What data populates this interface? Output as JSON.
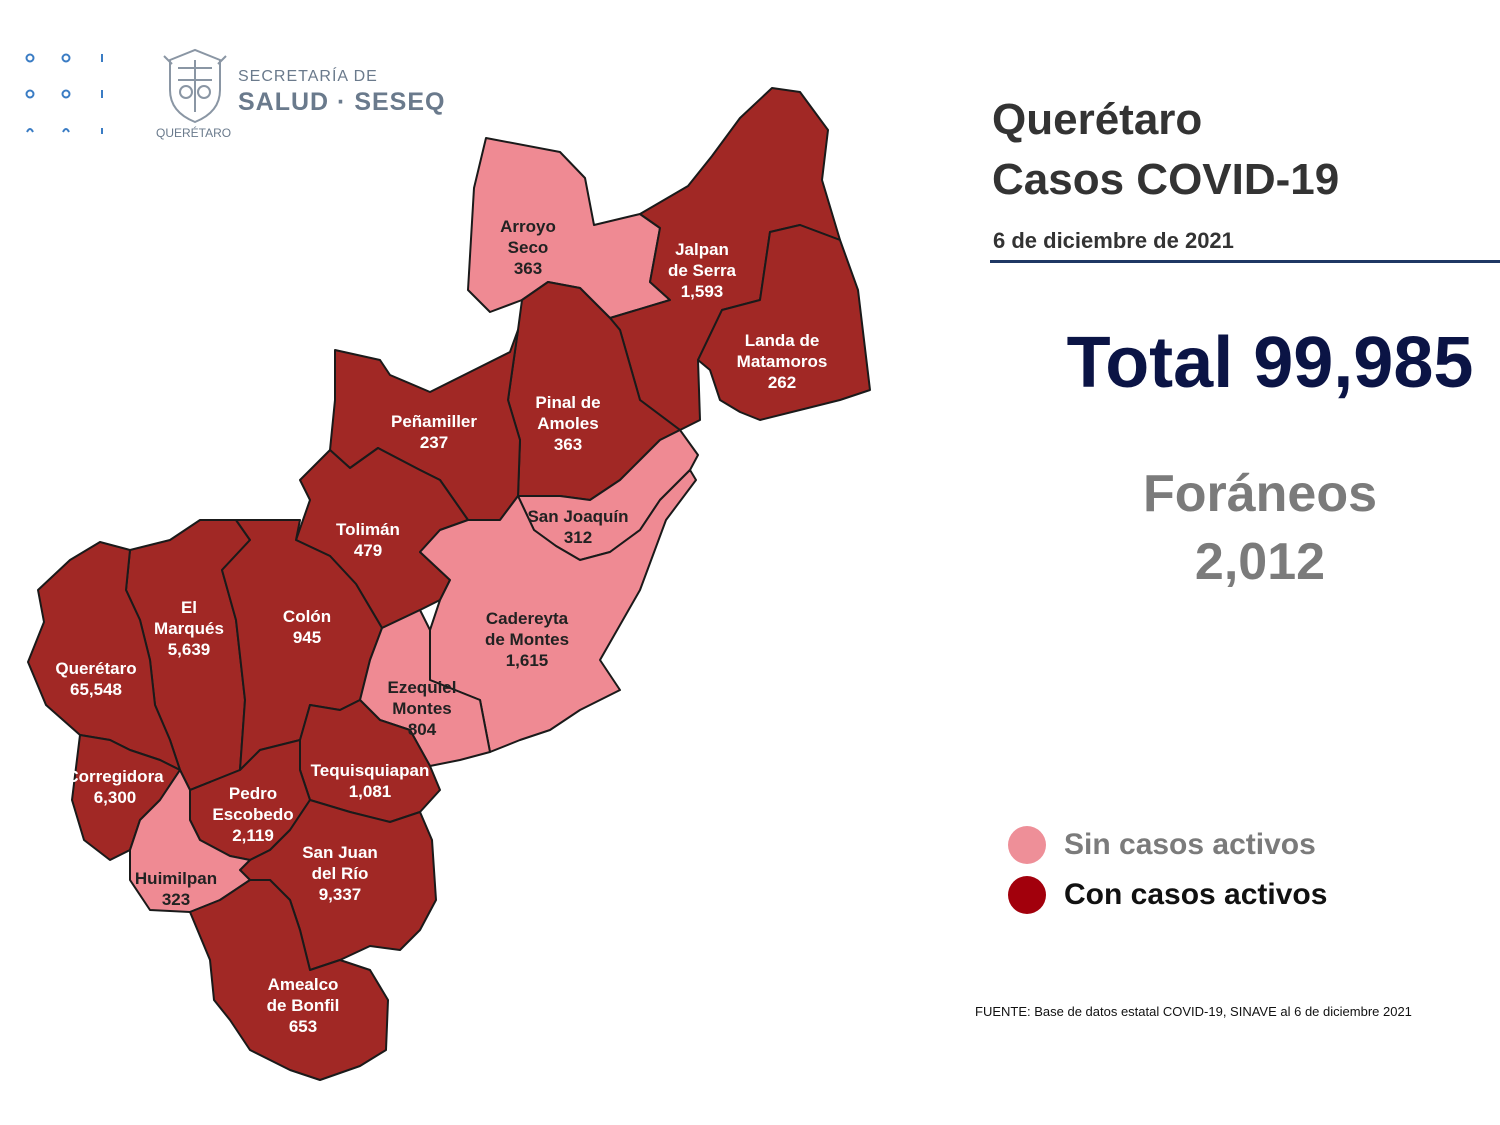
{
  "header": {
    "logo_line1": "SECRETARÍA DE",
    "logo_line2": "SALUD · SESEQ",
    "logo_state": "QUERÉTARO"
  },
  "title": {
    "line1": "Querétaro",
    "line2": "Casos COVID-19"
  },
  "date": "6 de diciembre de 2021",
  "total": "Total 99,985",
  "foraneos": {
    "label": "Foráneos",
    "value": "2,012"
  },
  "legend": [
    {
      "label": "Sin casos activos",
      "color": "#ee8f98",
      "text_color": "#7b7b7b"
    },
    {
      "label": "Con casos activos",
      "color": "#a2000c",
      "text_color": "#111111"
    }
  ],
  "colors": {
    "active": "#a12825",
    "inactive": "#ef8a93",
    "border": "#1a1a1a"
  },
  "municipalities": [
    {
      "id": "arroyo-seco",
      "name": [
        "Arroyo",
        "Seco"
      ],
      "cases": "363",
      "active": false
    },
    {
      "id": "jalpan-de-serra",
      "name": [
        "Jalpan",
        "de Serra"
      ],
      "cases": "1,593",
      "active": true
    },
    {
      "id": "landa-de-matamoros",
      "name": [
        "Landa de",
        "Matamoros"
      ],
      "cases": "262",
      "active": true
    },
    {
      "id": "pinal-de-amoles",
      "name": [
        "Pinal de",
        "Amoles"
      ],
      "cases": "363",
      "active": true
    },
    {
      "id": "penamiller",
      "name": [
        "Peñamiller"
      ],
      "cases": "237",
      "active": true
    },
    {
      "id": "san-joaquin",
      "name": [
        "San Joaquín"
      ],
      "cases": "312",
      "active": false
    },
    {
      "id": "toliman",
      "name": [
        "Tolimán"
      ],
      "cases": "479",
      "active": true
    },
    {
      "id": "cadereyta-de-montes",
      "name": [
        "Cadereyta",
        "de Montes"
      ],
      "cases": "1,615",
      "active": false
    },
    {
      "id": "el-marques",
      "name": [
        "El",
        "Marqués"
      ],
      "cases": "5,639",
      "active": true
    },
    {
      "id": "colon",
      "name": [
        "Colón"
      ],
      "cases": "945",
      "active": true
    },
    {
      "id": "queretaro",
      "name": [
        "Querétaro"
      ],
      "cases": "65,548",
      "active": true
    },
    {
      "id": "ezequiel-montes",
      "name": [
        "Ezequiel",
        "Montes"
      ],
      "cases": "804",
      "active": false
    },
    {
      "id": "corregidora",
      "name": [
        "Corregidora"
      ],
      "cases": "6,300",
      "active": true
    },
    {
      "id": "tequisquiapan",
      "name": [
        "Tequisquiapan"
      ],
      "cases": "1,081",
      "active": true
    },
    {
      "id": "pedro-escobedo",
      "name": [
        "Pedro",
        "Escobedo"
      ],
      "cases": "2,119",
      "active": true
    },
    {
      "id": "san-juan-del-rio",
      "name": [
        "San Juan",
        "del Río"
      ],
      "cases": "9,337",
      "active": true
    },
    {
      "id": "huimilpan",
      "name": [
        "Huimilpan"
      ],
      "cases": "323",
      "active": false
    },
    {
      "id": "amealco-de-bonfil",
      "name": [
        "Amealco",
        "de Bonfil"
      ],
      "cases": "653",
      "active": true
    }
  ],
  "source": "FUENTE: Base de datos estatal COVID-19, SINAVE al 6 de diciembre 2021"
}
